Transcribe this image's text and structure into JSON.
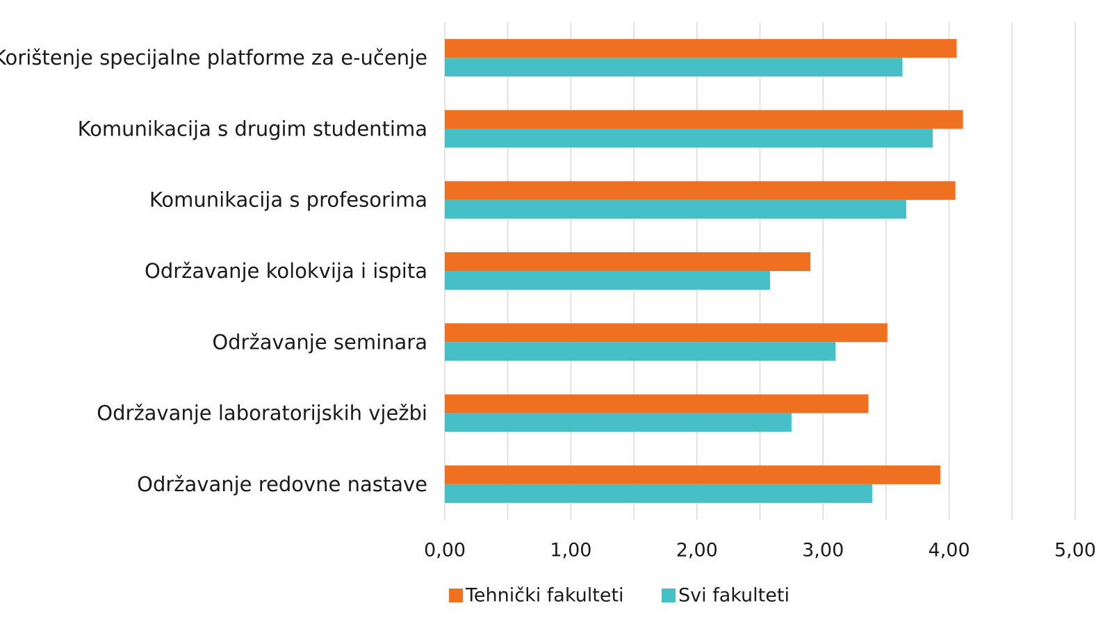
{
  "chart_data": {
    "type": "bar",
    "orientation": "horizontal",
    "categories": [
      "Korištenje specijalne platforme za e-učenje",
      "Komunikacija s drugim studentima",
      "Komunikacija s profesorima",
      "Održavanje kolokvija i ispita",
      "Održavanje seminara",
      "Održavanje laboratorijskih vježbi",
      "Održavanje redovne nastave"
    ],
    "series": [
      {
        "name": "Tehnički fakulteti",
        "color": "#F07022",
        "values": [
          4.06,
          4.11,
          4.05,
          2.9,
          3.51,
          3.36,
          3.93
        ]
      },
      {
        "name": "Svi fakulteti",
        "color": "#47BFC6",
        "values": [
          3.63,
          3.87,
          3.66,
          2.58,
          3.1,
          2.75,
          3.39
        ]
      }
    ],
    "xlim": [
      0,
      5
    ],
    "x_ticks": [
      "0,00",
      "1,00",
      "2,00",
      "3,00",
      "4,00",
      "5,00"
    ],
    "grid": true,
    "legend_position": "bottom"
  },
  "colors": {
    "grid": "#d9d9d9",
    "axis_text": "#1a1a1a"
  }
}
